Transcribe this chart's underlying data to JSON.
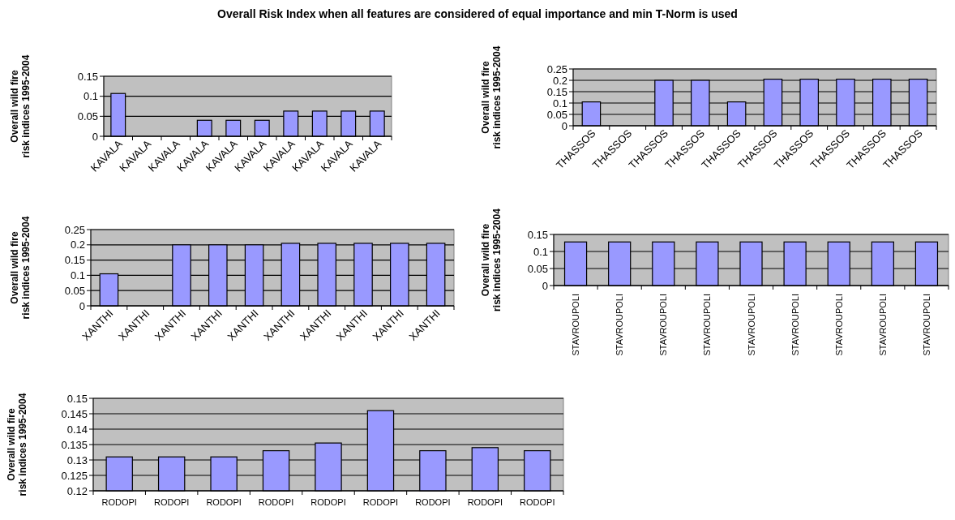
{
  "chart_data": [
    {
      "type": "bar",
      "title": "Overall Risk Index when all features are considered of equal importance and min T-Norm is used",
      "ylabel": "Overall wild fire risk indices 1995-2004",
      "categories": [
        "KAVALA",
        "KAVALA",
        "KAVALA",
        "KAVALA",
        "KAVALA",
        "KAVALA",
        "KAVALA",
        "KAVALA",
        "KAVALA",
        "KAVALA"
      ],
      "values": [
        0.107,
        null,
        null,
        0.04,
        0.04,
        0.04,
        0.063,
        0.063,
        0.063,
        0.063
      ],
      "color": "#9999ff",
      "ylim": [
        0,
        0.15
      ],
      "yticks": [
        0,
        0.05,
        0.1,
        0.15
      ],
      "grid": "y"
    },
    {
      "type": "bar",
      "ylabel": "Overall wild fire risk indices 1995-2004",
      "categories": [
        "THASSOS",
        "THASSOS",
        "THASSOS",
        "THASSOS",
        "THASSOS",
        "THASSOS",
        "THASSOS",
        "THASSOS",
        "THASSOS",
        "THASSOS"
      ],
      "values": [
        0.105,
        null,
        0.2,
        0.2,
        0.105,
        0.205,
        0.205,
        0.205,
        0.205,
        0.205
      ],
      "color": "#9999ff",
      "ylim": [
        0,
        0.25
      ],
      "yticks": [
        0,
        0.05,
        0.1,
        0.15,
        0.2,
        0.25
      ],
      "grid": "y"
    },
    {
      "type": "bar",
      "ylabel": "Overall wild fire risk indices 1995-2004",
      "categories": [
        "XANTHI",
        "XANTHI",
        "XANTHI",
        "XANTHI",
        "XANTHI",
        "XANTHI",
        "XANTHI",
        "XANTHI",
        "XANTHI",
        "XANTHI"
      ],
      "values": [
        0.105,
        null,
        0.2,
        0.2,
        0.2,
        0.205,
        0.205,
        0.205,
        0.205,
        0.205
      ],
      "color": "#9999ff",
      "ylim": [
        0,
        0.25
      ],
      "yticks": [
        0,
        0.05,
        0.1,
        0.15,
        0.2,
        0.25
      ],
      "grid": "y"
    },
    {
      "type": "bar",
      "ylabel": "Overall wild fire risk indices 1995-2004",
      "categories": [
        "STAVROUPOLI",
        "STAVROUPOLI",
        "STAVROUPOLI",
        "STAVROUPOLI",
        "STAVROUPOLI",
        "STAVROUPOLI",
        "STAVROUPOLI",
        "STAVROUPOLI",
        "STAVROUPOLI"
      ],
      "values": [
        0.128,
        0.128,
        0.128,
        0.128,
        0.128,
        0.128,
        0.128,
        0.128,
        0.128
      ],
      "color": "#9999ff",
      "ylim": [
        0,
        0.15
      ],
      "yticks": [
        0,
        0.05,
        0.1,
        0.15
      ],
      "grid": "y"
    },
    {
      "type": "bar",
      "ylabel": "Overall wild fire risk indices 1995-2004",
      "categories": [
        "RODOPI",
        "RODOPI",
        "RODOPI",
        "RODOPI",
        "RODOPI",
        "RODOPI",
        "RODOPI",
        "RODOPI",
        "RODOPI"
      ],
      "values": [
        0.131,
        0.131,
        0.131,
        0.133,
        0.1355,
        0.146,
        0.133,
        0.134,
        0.133
      ],
      "color": "#9999ff",
      "ylim": [
        0.12,
        0.15
      ],
      "yticks": [
        0.12,
        0.125,
        0.13,
        0.135,
        0.14,
        0.145,
        0.15
      ],
      "grid": "y"
    }
  ]
}
